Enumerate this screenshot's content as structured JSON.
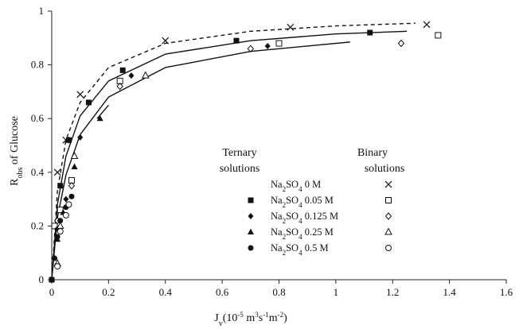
{
  "chart_data": {
    "type": "scatter",
    "xlabel": {
      "main": "J",
      "sub": "v",
      "rest": "(10",
      "sup1": "-5",
      "rest2": " m",
      "sup2": "3",
      "rest3": "s",
      "sup3": "-1",
      "rest4": "m",
      "sup4": "-2",
      "rest5": ")"
    },
    "ylabel": {
      "main": "R",
      "sub": "obs",
      "rest": " of Glucose"
    },
    "xlim": [
      0,
      1.6
    ],
    "ylim": [
      0,
      1
    ],
    "xticks": [
      "0",
      "0.2",
      "0.4",
      "0.6",
      "0.8",
      "1",
      "1.2",
      "1.4",
      "1.6"
    ],
    "yticks": [
      "0",
      "0.2",
      "0.4",
      "0.6",
      "0.8",
      "1"
    ],
    "grid": false,
    "legend": {
      "position": "bottom-center",
      "ternary_header": [
        "Ternary",
        "solutions"
      ],
      "binary_header": [
        "Binary",
        "solutions"
      ],
      "rows": [
        {
          "salt": "Na",
          "sub": "2",
          "salt2": "SO",
          "sub2": "4",
          "conc": " 0 M"
        },
        {
          "salt": "Na",
          "sub": "2",
          "salt2": "SO",
          "sub2": "4",
          "conc": " 0.05 M"
        },
        {
          "salt": "Na",
          "sub": "2",
          "salt2": "SO",
          "sub2": "4",
          "conc": " 0.125 M"
        },
        {
          "salt": "Na",
          "sub": "2",
          "salt2": "SO",
          "sub2": "4",
          "conc": " 0.25 M"
        },
        {
          "salt": "Na",
          "sub": "2",
          "salt2": "SO",
          "sub2": "4",
          "conc": " 0.5 M"
        }
      ]
    },
    "series": [
      {
        "conc": "0 M",
        "kind": "ternary",
        "marker": "dash",
        "points": [
          [
            0.02,
            0.4
          ],
          [
            0.05,
            0.52
          ],
          [
            0.1,
            0.69
          ],
          [
            0.4,
            0.89
          ],
          [
            0.84,
            0.94
          ],
          [
            1.32,
            0.95
          ]
        ]
      },
      {
        "conc": "0 M",
        "kind": "binary",
        "marker": "x",
        "points": [
          [
            0.02,
            0.4
          ],
          [
            0.05,
            0.52
          ],
          [
            0.1,
            0.69
          ],
          [
            0.4,
            0.89
          ],
          [
            0.84,
            0.94
          ],
          [
            1.32,
            0.95
          ]
        ]
      },
      {
        "conc": "0.05 M",
        "kind": "ternary",
        "marker": "square-filled",
        "points": [
          [
            0.0,
            0.0
          ],
          [
            0.01,
            0.2
          ],
          [
            0.03,
            0.35
          ],
          [
            0.06,
            0.52
          ],
          [
            0.13,
            0.66
          ],
          [
            0.25,
            0.78
          ],
          [
            0.65,
            0.89
          ],
          [
            1.12,
            0.92
          ]
        ]
      },
      {
        "conc": "0.05 M",
        "kind": "binary",
        "marker": "square-open",
        "points": [
          [
            0.01,
            0.2
          ],
          [
            0.03,
            0.26
          ],
          [
            0.07,
            0.37
          ],
          [
            0.24,
            0.74
          ],
          [
            0.8,
            0.88
          ],
          [
            1.36,
            0.91
          ]
        ]
      },
      {
        "conc": "0.125 M",
        "kind": "ternary",
        "marker": "diamond-filled",
        "points": [
          [
            0.0,
            0.0
          ],
          [
            0.02,
            0.19
          ],
          [
            0.05,
            0.3
          ],
          [
            0.1,
            0.53
          ],
          [
            0.28,
            0.76
          ],
          [
            0.76,
            0.87
          ]
        ]
      },
      {
        "conc": "0.125 M",
        "kind": "binary",
        "marker": "diamond-open",
        "points": [
          [
            0.02,
            0.22
          ],
          [
            0.07,
            0.35
          ],
          [
            0.24,
            0.72
          ],
          [
            0.7,
            0.86
          ],
          [
            1.23,
            0.88
          ]
        ]
      },
      {
        "conc": "0.25 M",
        "kind": "ternary",
        "marker": "triangle-filled",
        "points": [
          [
            0.0,
            0.0
          ],
          [
            0.02,
            0.15
          ],
          [
            0.04,
            0.25
          ],
          [
            0.08,
            0.42
          ],
          [
            0.17,
            0.6
          ]
        ]
      },
      {
        "conc": "0.25 M",
        "kind": "binary",
        "marker": "triangle-open",
        "points": [
          [
            0.02,
            0.06
          ],
          [
            0.03,
            0.2
          ],
          [
            0.08,
            0.46
          ],
          [
            0.33,
            0.76
          ]
        ]
      },
      {
        "conc": "0.5 M",
        "kind": "ternary",
        "marker": "circle-filled",
        "points": [
          [
            0.0,
            0.0
          ],
          [
            0.01,
            0.08
          ],
          [
            0.02,
            0.16
          ],
          [
            0.03,
            0.22
          ],
          [
            0.05,
            0.27
          ],
          [
            0.07,
            0.31
          ]
        ]
      },
      {
        "conc": "0.5 M",
        "kind": "binary",
        "marker": "circle-open",
        "points": [
          [
            0.02,
            0.05
          ],
          [
            0.03,
            0.18
          ],
          [
            0.05,
            0.24
          ],
          [
            0.06,
            0.28
          ]
        ]
      }
    ],
    "fit_lines": [
      {
        "style": "dashed",
        "points": [
          [
            0,
            0
          ],
          [
            0.02,
            0.33
          ],
          [
            0.05,
            0.52
          ],
          [
            0.1,
            0.66
          ],
          [
            0.2,
            0.79
          ],
          [
            0.4,
            0.88
          ],
          [
            0.7,
            0.925
          ],
          [
            1.0,
            0.945
          ],
          [
            1.28,
            0.955
          ]
        ]
      },
      {
        "style": "solid",
        "points": [
          [
            0,
            0
          ],
          [
            0.02,
            0.28
          ],
          [
            0.05,
            0.46
          ],
          [
            0.1,
            0.61
          ],
          [
            0.2,
            0.74
          ],
          [
            0.4,
            0.84
          ],
          [
            0.7,
            0.89
          ],
          [
            1.0,
            0.915
          ],
          [
            1.25,
            0.925
          ]
        ]
      },
      {
        "style": "solid",
        "points": [
          [
            0,
            0
          ],
          [
            0.02,
            0.23
          ],
          [
            0.05,
            0.39
          ],
          [
            0.1,
            0.54
          ],
          [
            0.2,
            0.68
          ],
          [
            0.4,
            0.79
          ],
          [
            0.7,
            0.85
          ],
          [
            1.05,
            0.885
          ]
        ]
      },
      {
        "style": "solid",
        "points": [
          [
            0.16,
            0.6
          ],
          [
            0.2,
            0.65
          ]
        ]
      }
    ]
  }
}
